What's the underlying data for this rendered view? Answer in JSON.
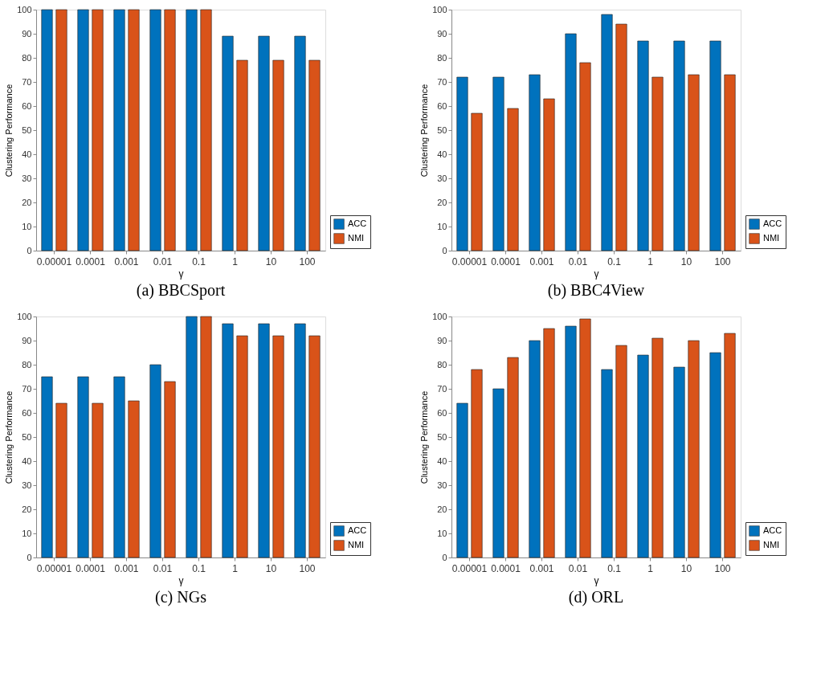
{
  "chart_data": [
    {
      "type": "bar",
      "title": "(a) BBCSport",
      "xlabel": "γ",
      "ylabel": "Clustering Performance",
      "categories": [
        "0.00001",
        "0.0001",
        "0.001",
        "0.01",
        "0.1",
        "1",
        "10",
        "100"
      ],
      "ylim": [
        0,
        100
      ],
      "yticks": [
        0,
        10,
        20,
        30,
        40,
        50,
        60,
        70,
        80,
        90,
        100
      ],
      "grid": false,
      "legend": "bottom right",
      "series": [
        {
          "name": "ACC",
          "color": "#0072bd",
          "values": [
            100,
            100,
            100,
            100,
            100,
            89,
            89,
            89
          ]
        },
        {
          "name": "NMI",
          "color": "#d95319",
          "values": [
            100,
            100,
            100,
            100,
            100,
            79,
            79,
            79
          ]
        }
      ]
    },
    {
      "type": "bar",
      "title": "(b) BBC4View",
      "xlabel": "γ",
      "ylabel": "Clustering Performance",
      "categories": [
        "0.00001",
        "0.0001",
        "0.001",
        "0.01",
        "0.1",
        "1",
        "10",
        "100"
      ],
      "ylim": [
        0,
        100
      ],
      "yticks": [
        0,
        10,
        20,
        30,
        40,
        50,
        60,
        70,
        80,
        90,
        100
      ],
      "grid": false,
      "legend": "bottom right",
      "series": [
        {
          "name": "ACC",
          "color": "#0072bd",
          "values": [
            72,
            72,
            73,
            90,
            98,
            87,
            87,
            87
          ]
        },
        {
          "name": "NMI",
          "color": "#d95319",
          "values": [
            57,
            59,
            63,
            78,
            94,
            72,
            73,
            73
          ]
        }
      ]
    },
    {
      "type": "bar",
      "title": "(c) NGs",
      "xlabel": "γ",
      "ylabel": "Clustering Performance",
      "categories": [
        "0.00001",
        "0.0001",
        "0.001",
        "0.01",
        "0.1",
        "1",
        "10",
        "100"
      ],
      "ylim": [
        0,
        100
      ],
      "yticks": [
        0,
        10,
        20,
        30,
        40,
        50,
        60,
        70,
        80,
        90,
        100
      ],
      "grid": false,
      "legend": "bottom right",
      "series": [
        {
          "name": "ACC",
          "color": "#0072bd",
          "values": [
            75,
            75,
            75,
            80,
            100,
            97,
            97,
            97
          ]
        },
        {
          "name": "NMI",
          "color": "#d95319",
          "values": [
            64,
            64,
            65,
            73,
            100,
            92,
            92,
            92
          ]
        }
      ]
    },
    {
      "type": "bar",
      "title": "(d) ORL",
      "xlabel": "γ",
      "ylabel": "Clustering Performance",
      "categories": [
        "0.00001",
        "0.0001",
        "0.001",
        "0.01",
        "0.1",
        "1",
        "10",
        "100"
      ],
      "ylim": [
        0,
        100
      ],
      "yticks": [
        0,
        10,
        20,
        30,
        40,
        50,
        60,
        70,
        80,
        90,
        100
      ],
      "grid": false,
      "legend": "bottom right",
      "series": [
        {
          "name": "ACC",
          "color": "#0072bd",
          "values": [
            64,
            70,
            90,
            96,
            78,
            84,
            79,
            85
          ]
        },
        {
          "name": "NMI",
          "color": "#d95319",
          "values": [
            78,
            83,
            95,
            99,
            88,
            91,
            90,
            93
          ]
        }
      ]
    }
  ]
}
